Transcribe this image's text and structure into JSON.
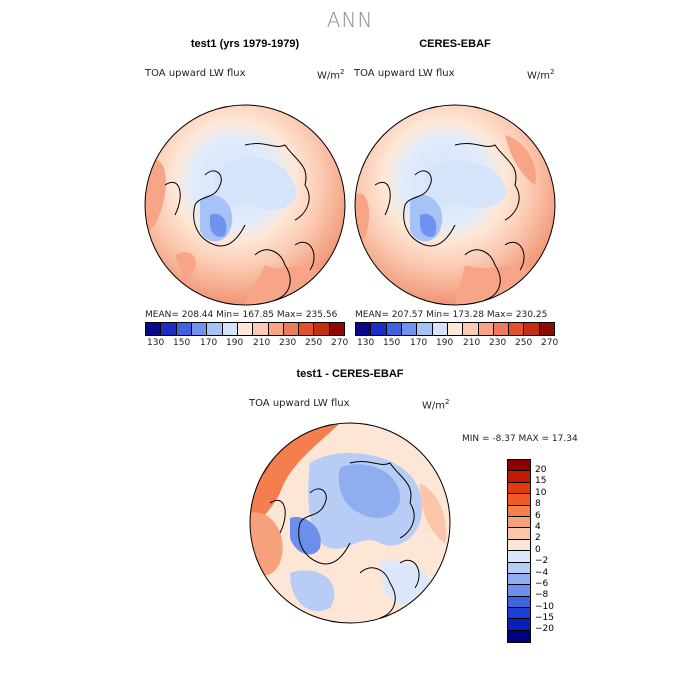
{
  "title": "ANN",
  "panels": [
    {
      "title": "test1 (yrs 1979-1979)",
      "variable": "TOA upward LW flux",
      "units": "W/m",
      "units_exp": "2",
      "stats": "MEAN= 208.44   Min= 167.85   Max= 235.56"
    },
    {
      "title": "CERES-EBAF",
      "variable": "TOA upward LW flux",
      "units": "W/m",
      "units_exp": "2",
      "stats": "MEAN= 207.57   Min= 173.28   Max= 230.25"
    },
    {
      "title": "test1 - CERES-EBAF",
      "variable": "TOA upward LW flux",
      "units": "W/m",
      "units_exp": "2",
      "stats": "MIN =   -8.37  MAX =   17.34"
    }
  ],
  "colorbar_abs": {
    "ticks": [
      "130",
      "150",
      "170",
      "190",
      "210",
      "230",
      "250",
      "270"
    ],
    "colors": [
      "#08088a",
      "#1b2fc4",
      "#3d63e0",
      "#6f93ee",
      "#a6c2f6",
      "#d6e4fb",
      "#fde8d8",
      "#fbcab2",
      "#f7a487",
      "#ee7a5a",
      "#e2502f",
      "#c52d14",
      "#8f0a05"
    ]
  },
  "colorbar_diff": {
    "labels": [
      "20",
      "15",
      "10",
      "8",
      "6",
      "4",
      "2",
      "0",
      "−2",
      "−4",
      "−6",
      "−8",
      "−10",
      "−15",
      "−20"
    ],
    "colors": [
      "#8b0000",
      "#c01a05",
      "#e23a10",
      "#f05a25",
      "#f57e4e",
      "#f7a07c",
      "#fac5a9",
      "#fde6d5",
      "#dce8fa",
      "#b7cdf6",
      "#8faeef",
      "#6b8fea",
      "#3d63e0",
      "#1c3fd0",
      "#0a1fb8",
      "#000080"
    ]
  }
}
